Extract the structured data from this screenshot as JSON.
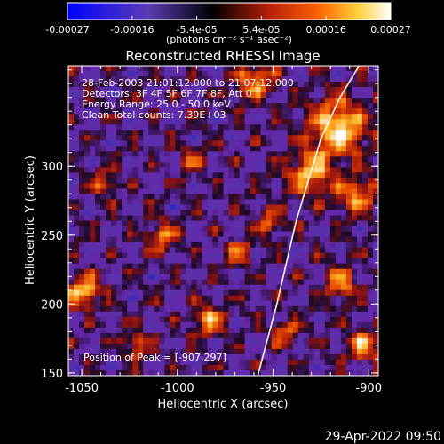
{
  "colorbar": {
    "tick_labels": [
      "-0.00027",
      "-0.00016",
      "-5.4e-05",
      "5.4e-05",
      "0.00016",
      "0.00027"
    ],
    "unit_label": "(photons cm⁻² s⁻¹ asec⁻²)",
    "range": [
      -0.00027,
      0.00027
    ],
    "colors": [
      "#0000ff",
      "#6a32a8",
      "#000000",
      "#b41e0a",
      "#ff5a00",
      "#ffd040",
      "#ffffff"
    ]
  },
  "plot": {
    "title": "Reconstructed RHESSI Image",
    "xlabel": "Heliocentric X (arcsec)",
    "ylabel": "Heliocentric Y (arcsec)",
    "xlim": [
      -1057,
      -895
    ],
    "ylim": [
      148,
      373
    ],
    "x_ticks": [
      "-1050",
      "-1000",
      "-950",
      "-900"
    ],
    "x_tick_values": [
      -1050,
      -1000,
      -950,
      -900
    ],
    "y_ticks": [
      "150",
      "200",
      "250",
      "300"
    ],
    "y_tick_values": [
      150,
      200,
      250,
      300
    ],
    "info_lines": [
      "28-Feb-2003 21:01:12.000 to 21:07:12.000",
      "Detectors: 3F 4F 5F 6F 7F 8F, Att 0",
      "Energy Range: 25.0 - 50.0 keV",
      "Clean     Total counts: 7.39E+03"
    ],
    "peak_label": "Position of Peak = [-907,297]",
    "peak": [
      -907,
      297
    ],
    "limb_curve": [
      [
        -958,
        148
      ],
      [
        -948,
        200
      ],
      [
        -938,
        260
      ],
      [
        -925,
        320
      ],
      [
        -915,
        350
      ],
      [
        -905,
        373
      ]
    ]
  },
  "timestamp": "29-Apr-2022 09:50"
}
